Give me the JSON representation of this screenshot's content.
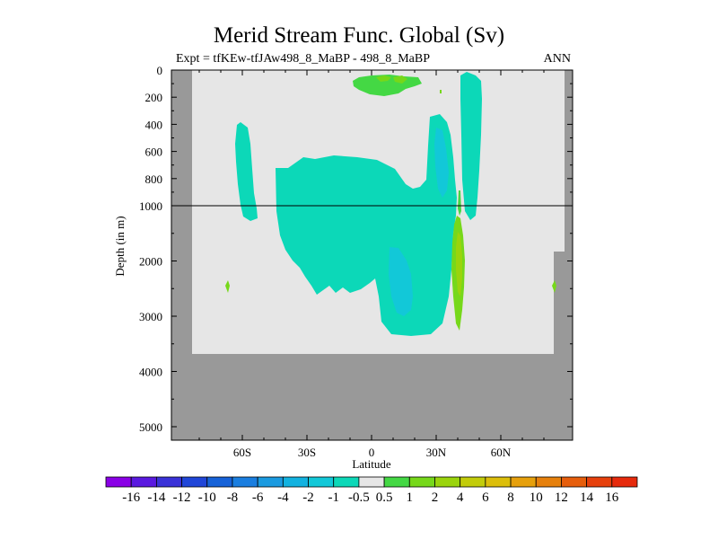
{
  "chart_data": {
    "type": "heatmap",
    "title": "Merid Stream Func. Global (Sv)",
    "subtitle_left": "Expt = tfKEw-tfJAw498_8_MaBP - 498_8_MaBP",
    "subtitle_right": "ANN",
    "xlabel": "Latitude",
    "ylabel": "Depth (in m)",
    "x_ticks": [
      "60S",
      "30S",
      "0",
      "30N",
      "60N"
    ],
    "x_tick_values": [
      -60,
      -30,
      0,
      30,
      60
    ],
    "xlim": [
      -90,
      90
    ],
    "y_ticks": [
      "0",
      "200",
      "400",
      "600",
      "800",
      "1000",
      "2000",
      "3000",
      "4000",
      "5000"
    ],
    "y_tick_values": [
      0,
      200,
      400,
      600,
      800,
      1000,
      2000,
      3000,
      4000,
      5000
    ],
    "ylim": [
      0,
      5000
    ],
    "y_scale": "stretched upper 1000 m",
    "reference_line_depth": 1000,
    "colorbar": {
      "labels": [
        "-16",
        "-14",
        "-12",
        "-10",
        "-8",
        "-6",
        "-4",
        "-2",
        "-1",
        "-0.5",
        "0.5",
        "1",
        "2",
        "4",
        "6",
        "8",
        "10",
        "12",
        "14",
        "16"
      ],
      "colors": [
        "#8a00e6",
        "#5a19e0",
        "#3a32d8",
        "#2046d8",
        "#1662d8",
        "#1a7ee0",
        "#1a9ae0",
        "#12b2e0",
        "#12c8d8",
        "#0cd8b8",
        "#e6e6e6",
        "#44d844",
        "#76d81a",
        "#9ad40c",
        "#c2cc0a",
        "#dcbe0a",
        "#e6a00c",
        "#e6800c",
        "#e65e0c",
        "#e6400c",
        "#e62a0c"
      ]
    },
    "land_color": "#999999",
    "ocean_color": "#e6e6e6"
  }
}
